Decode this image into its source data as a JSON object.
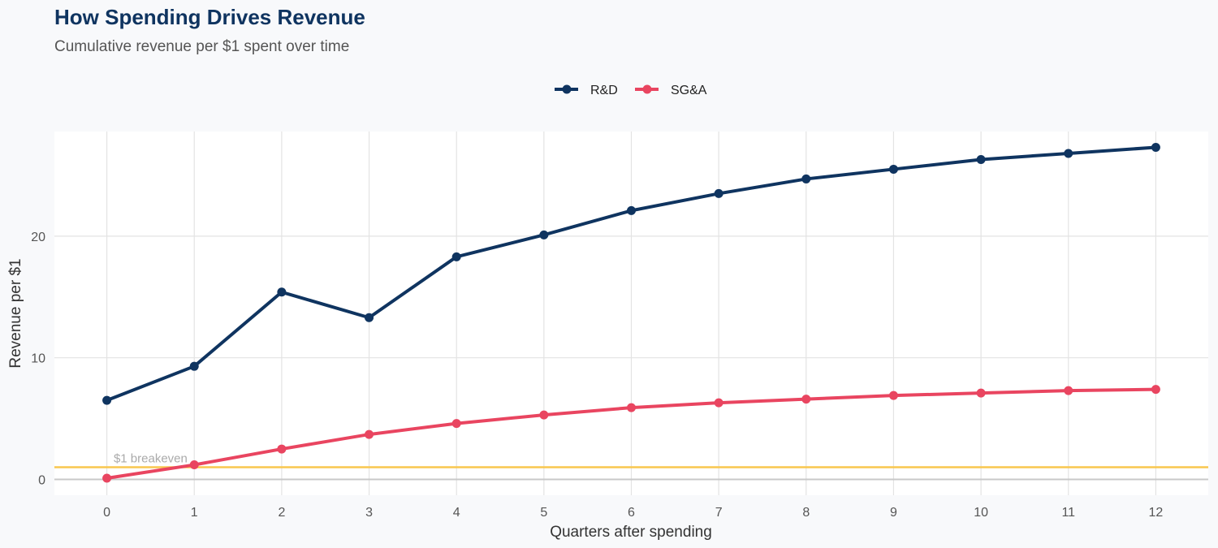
{
  "chart_data": {
    "type": "line",
    "title": "How Spending Drives Revenue",
    "subtitle": "Cumulative revenue per $1 spent over time",
    "xlabel": "Quarters after spending",
    "ylabel": "Revenue per $1",
    "x": [
      0,
      1,
      2,
      3,
      4,
      5,
      6,
      7,
      8,
      9,
      10,
      11,
      12
    ],
    "xlim": [
      -0.6,
      12.6
    ],
    "ylim": [
      -1.3,
      28.6
    ],
    "yticks": [
      0,
      10,
      20
    ],
    "grid": true,
    "legend_position": "top",
    "series": [
      {
        "name": "R&D",
        "color": "#0f3460",
        "values": [
          6.5,
          9.3,
          15.4,
          13.3,
          18.3,
          20.1,
          22.1,
          23.5,
          24.7,
          25.5,
          26.3,
          26.8,
          27.3
        ]
      },
      {
        "name": "SG&A",
        "color": "#e94560",
        "values": [
          0.1,
          1.2,
          2.5,
          3.7,
          4.6,
          5.3,
          5.9,
          6.3,
          6.6,
          6.9,
          7.1,
          7.3,
          7.4
        ]
      }
    ],
    "reference_line": {
      "y": 1,
      "label": "$1 breakeven",
      "label_x": 0.5,
      "color": "#f9c74f"
    }
  }
}
